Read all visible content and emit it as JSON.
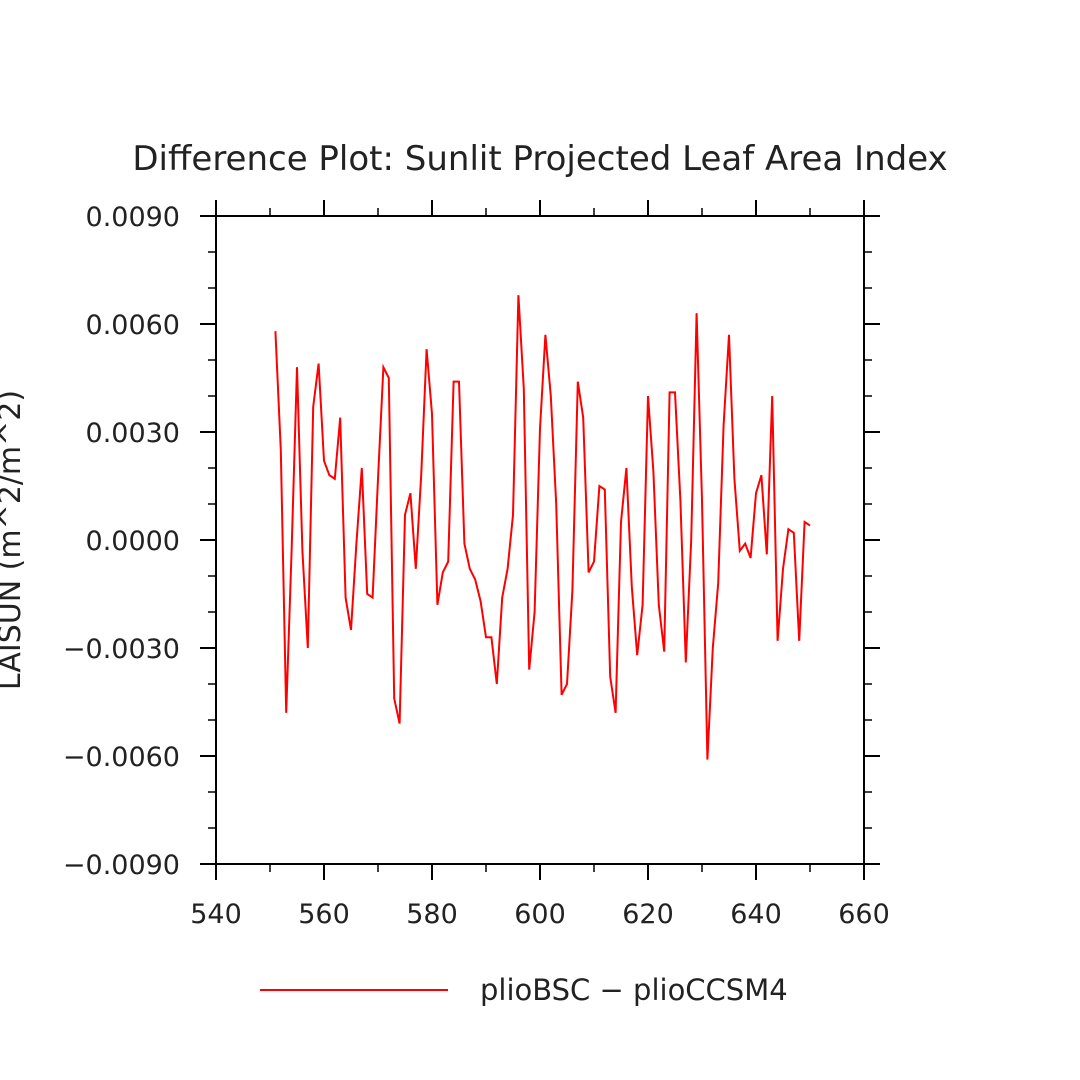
{
  "chart_data": {
    "type": "line",
    "title": "Difference Plot: Sunlit Projected Leaf Area Index",
    "xlabel": "",
    "ylabel": "LAISUN   (m^2/m^2)",
    "xlim": [
      540,
      660
    ],
    "ylim": [
      -0.009,
      0.009
    ],
    "x_ticks": [
      540,
      560,
      580,
      600,
      620,
      640,
      660
    ],
    "x_tick_labels": [
      "540",
      "560",
      "580",
      "600",
      "620",
      "640",
      "660"
    ],
    "y_ticks": [
      -0.009,
      -0.006,
      -0.003,
      0.0,
      0.003,
      0.006,
      0.009
    ],
    "y_tick_labels": [
      "−0.0090",
      "−0.0060",
      "−0.0030",
      "0.0000",
      "0.0030",
      "0.0060",
      "0.0090"
    ],
    "grid": false,
    "legend_position": "bottom",
    "series": [
      {
        "name": "plioBSC − plioCCSM4",
        "color": "#ff0000",
        "x": [
          551,
          552,
          553,
          554,
          555,
          556,
          557,
          558,
          559,
          560,
          561,
          562,
          563,
          564,
          565,
          566,
          567,
          568,
          569,
          570,
          571,
          572,
          573,
          574,
          575,
          576,
          577,
          578,
          579,
          580,
          581,
          582,
          583,
          584,
          585,
          586,
          587,
          588,
          589,
          590,
          591,
          592,
          593,
          594,
          595,
          596,
          597,
          598,
          599,
          600,
          601,
          602,
          603,
          604,
          605,
          606,
          607,
          608,
          609,
          610,
          611,
          612,
          613,
          614,
          615,
          616,
          617,
          618,
          619,
          620,
          621,
          622,
          623,
          624,
          625,
          626,
          627,
          628,
          629,
          630,
          631,
          632,
          633,
          634,
          635,
          636,
          637,
          638,
          639,
          640,
          641,
          642,
          643,
          644,
          645,
          646,
          647,
          648,
          649,
          650
        ],
        "y": [
          0.0058,
          0.0025,
          -0.0048,
          -0.0003,
          0.0048,
          -0.0003,
          -0.003,
          0.0037,
          0.0049,
          0.0022,
          0.0018,
          0.0017,
          0.0034,
          -0.0016,
          -0.0025,
          -0.0001,
          0.002,
          -0.0015,
          -0.0016,
          0.0017,
          0.0048,
          0.0045,
          -0.0044,
          -0.0051,
          0.0007,
          0.0013,
          -0.0008,
          0.0018,
          0.0053,
          0.0035,
          -0.0018,
          -0.0009,
          -0.0006,
          0.0044,
          0.0044,
          -0.0001,
          -0.0008,
          -0.0011,
          -0.0017,
          -0.0027,
          -0.0027,
          -0.004,
          -0.0016,
          -0.0008,
          0.0007,
          0.0068,
          0.0042,
          -0.0036,
          -0.002,
          0.0031,
          0.0057,
          0.004,
          0.001,
          -0.0043,
          -0.004,
          -0.0014,
          0.0044,
          0.0034,
          -0.0009,
          -0.0006,
          0.0015,
          0.0014,
          -0.0038,
          -0.0048,
          0.0005,
          0.002,
          -0.0013,
          -0.0032,
          -0.0018,
          0.004,
          0.0019,
          -0.0018,
          -0.0031,
          0.0041,
          0.0041,
          0.0011,
          -0.0034,
          0.0,
          0.0063,
          0.0011,
          -0.0061,
          -0.003,
          -0.0012,
          0.0032,
          0.0057,
          0.0017,
          -0.0003,
          -0.0001,
          -0.0005,
          0.0013,
          0.0018,
          -0.0004,
          0.004,
          -0.0028,
          -0.0008,
          0.0003,
          0.0002,
          -0.0028,
          0.0005,
          0.0004
        ]
      }
    ]
  }
}
